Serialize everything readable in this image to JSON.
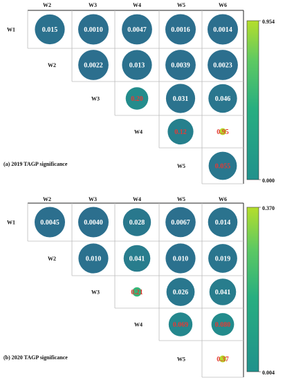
{
  "chart_data": [
    {
      "type": "heatmap",
      "title": "(a) 2019 TAGP significance",
      "rows": [
        "W1",
        "W2",
        "W3",
        "W4",
        "W5"
      ],
      "columns": [
        "W2",
        "W3",
        "W4",
        "W5",
        "W6"
      ],
      "cells": [
        {
          "row": "W1",
          "col": "W2",
          "value": 0.015,
          "label": "0.015"
        },
        {
          "row": "W1",
          "col": "W3",
          "value": 0.001,
          "label": "0.0010"
        },
        {
          "row": "W1",
          "col": "W4",
          "value": 0.0047,
          "label": "0.0047"
        },
        {
          "row": "W1",
          "col": "W5",
          "value": 0.0016,
          "label": "0.0016"
        },
        {
          "row": "W1",
          "col": "W6",
          "value": 0.0014,
          "label": "0.0014"
        },
        {
          "row": "W2",
          "col": "W3",
          "value": 0.0022,
          "label": "0.0022"
        },
        {
          "row": "W2",
          "col": "W4",
          "value": 0.013,
          "label": "0.013"
        },
        {
          "row": "W2",
          "col": "W5",
          "value": 0.0039,
          "label": "0.0039"
        },
        {
          "row": "W2",
          "col": "W6",
          "value": 0.0023,
          "label": "0.0023"
        },
        {
          "row": "W3",
          "col": "W4",
          "value": 0.2,
          "label": "0.20"
        },
        {
          "row": "W3",
          "col": "W5",
          "value": 0.031,
          "label": "0.031"
        },
        {
          "row": "W3",
          "col": "W6",
          "value": 0.046,
          "label": "0.046"
        },
        {
          "row": "W4",
          "col": "W5",
          "value": 0.12,
          "label": "0.12"
        },
        {
          "row": "W4",
          "col": "W6",
          "value": 0.95,
          "label": "0.95"
        },
        {
          "row": "W5",
          "col": "W6",
          "value": 0.055,
          "label": "0.055"
        }
      ],
      "significance_threshold": 0.05,
      "colorbar": {
        "min": 0.0,
        "max": 0.954,
        "min_label": "0.000",
        "max_label": "0.954",
        "low_color": "#21918c",
        "high_color": "#b5de2b"
      }
    },
    {
      "type": "heatmap",
      "title": "(b) 2020 TAGP significance",
      "rows": [
        "W1",
        "W2",
        "W3",
        "W4",
        "W5"
      ],
      "columns": [
        "W2",
        "W3",
        "W4",
        "W5",
        "W6"
      ],
      "cells": [
        {
          "row": "W1",
          "col": "W2",
          "value": 0.0045,
          "label": "0.0045"
        },
        {
          "row": "W1",
          "col": "W3",
          "value": 0.004,
          "label": "0.0040"
        },
        {
          "row": "W1",
          "col": "W4",
          "value": 0.028,
          "label": "0.028"
        },
        {
          "row": "W1",
          "col": "W5",
          "value": 0.0067,
          "label": "0.0067"
        },
        {
          "row": "W1",
          "col": "W6",
          "value": 0.014,
          "label": "0.014"
        },
        {
          "row": "W2",
          "col": "W3",
          "value": 0.01,
          "label": "0.010"
        },
        {
          "row": "W2",
          "col": "W4",
          "value": 0.041,
          "label": "0.041"
        },
        {
          "row": "W2",
          "col": "W5",
          "value": 0.01,
          "label": "0.010"
        },
        {
          "row": "W2",
          "col": "W6",
          "value": 0.019,
          "label": "0.019"
        },
        {
          "row": "W3",
          "col": "W4",
          "value": 0.21,
          "label": "0.21"
        },
        {
          "row": "W3",
          "col": "W5",
          "value": 0.026,
          "label": "0.026"
        },
        {
          "row": "W3",
          "col": "W6",
          "value": 0.041,
          "label": "0.041"
        },
        {
          "row": "W4",
          "col": "W5",
          "value": 0.069,
          "label": "0.069"
        },
        {
          "row": "W4",
          "col": "W6",
          "value": 0.08,
          "label": "0.080"
        },
        {
          "row": "W5",
          "col": "W6",
          "value": 0.37,
          "label": "0.37"
        }
      ],
      "significance_threshold": 0.05,
      "colorbar": {
        "min": 0.004,
        "max": 0.37,
        "min_label": "0.004",
        "max_label": "0.370",
        "low_color": "#21918c",
        "high_color": "#b5de2b"
      }
    }
  ],
  "colors": {
    "significant_text": "#ffffff",
    "nonsignificant_text": "#e53935",
    "colormap_stops": [
      "#2c6f8e",
      "#21918c",
      "#28ae80",
      "#5ec962",
      "#b5de2b"
    ]
  }
}
